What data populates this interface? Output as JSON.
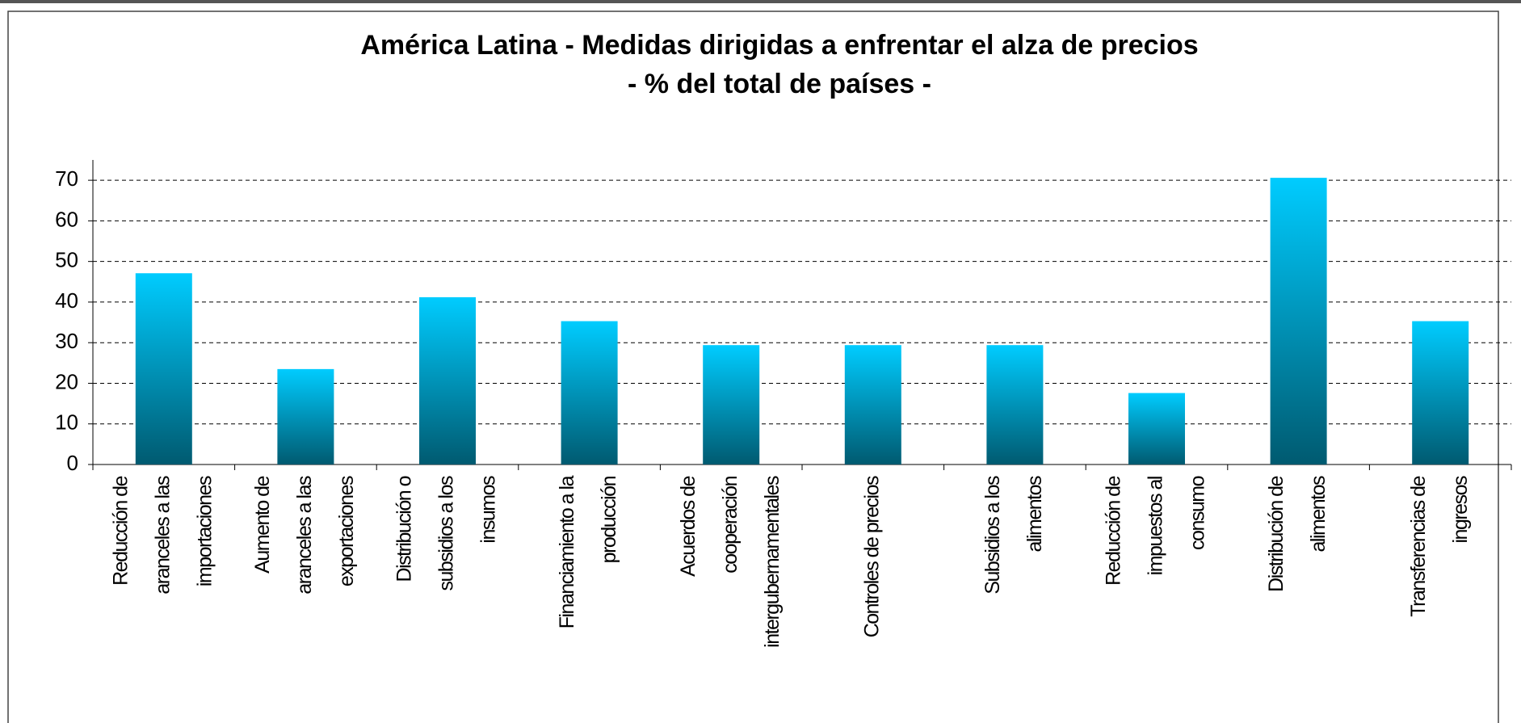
{
  "chart_data": {
    "type": "bar",
    "title": "América Latina - Medidas dirigidas a enfrentar el alza de precios",
    "subtitle": "- % del total de países -",
    "categories": [
      [
        "Reducción de",
        "aranceles a las",
        "importaciones"
      ],
      [
        "Aumento de",
        "aranceles a las",
        "exportaciones"
      ],
      [
        "Distribución o",
        "subsidios a los",
        "insumos"
      ],
      [
        "Financiamiento a la",
        "producción"
      ],
      [
        "Acuerdos de",
        "cooperación",
        "intergubernamentales"
      ],
      [
        "Controles de precios"
      ],
      [
        "Subsidios a los",
        "alimentos"
      ],
      [
        "Reducción de",
        "impuestos al",
        "consumo"
      ],
      [
        "Distribución de",
        "alimentos"
      ],
      [
        "Transferencias de",
        "ingresos"
      ]
    ],
    "values": [
      47.1,
      23.5,
      41.2,
      35.3,
      29.4,
      29.4,
      29.4,
      17.6,
      70.6,
      35.3
    ],
    "color": [
      "#00ccff",
      "#005a70"
    ],
    "ylim": [
      0,
      75
    ],
    "yticks": [
      0,
      10,
      20,
      30,
      40,
      50,
      60,
      70
    ],
    "grid": true
  }
}
